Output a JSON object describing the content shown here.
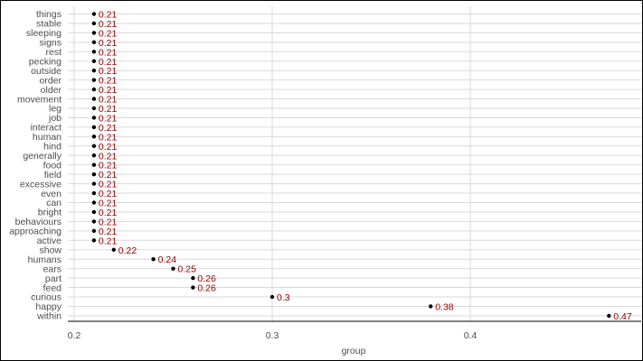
{
  "chart_data": {
    "type": "scatter",
    "orientation": "horizontal-dot",
    "xlabel": "group",
    "ylabel": "",
    "title": "",
    "xlim": [
      0.2,
      0.48
    ],
    "xticks": [
      0.2,
      0.3,
      0.4
    ],
    "grid": true,
    "categories": [
      "things",
      "stable",
      "sleeping",
      "signs",
      "rest",
      "pecking",
      "outside",
      "order",
      "older",
      "movement",
      "leg",
      "job",
      "interact",
      "human",
      "hind",
      "generally",
      "food",
      "field",
      "excessive",
      "even",
      "can",
      "bright",
      "behaviours",
      "approaching",
      "active",
      "show",
      "humans",
      "ears",
      "part",
      "feed",
      "curious",
      "happy",
      "within"
    ],
    "values": [
      0.21,
      0.21,
      0.21,
      0.21,
      0.21,
      0.21,
      0.21,
      0.21,
      0.21,
      0.21,
      0.21,
      0.21,
      0.21,
      0.21,
      0.21,
      0.21,
      0.21,
      0.21,
      0.21,
      0.21,
      0.21,
      0.21,
      0.21,
      0.21,
      0.21,
      0.22,
      0.24,
      0.25,
      0.26,
      0.26,
      0.3,
      0.38,
      0.47
    ],
    "point_color": "#000000",
    "label_color": "#8b0000",
    "grid_color": "#d9d9d9"
  }
}
